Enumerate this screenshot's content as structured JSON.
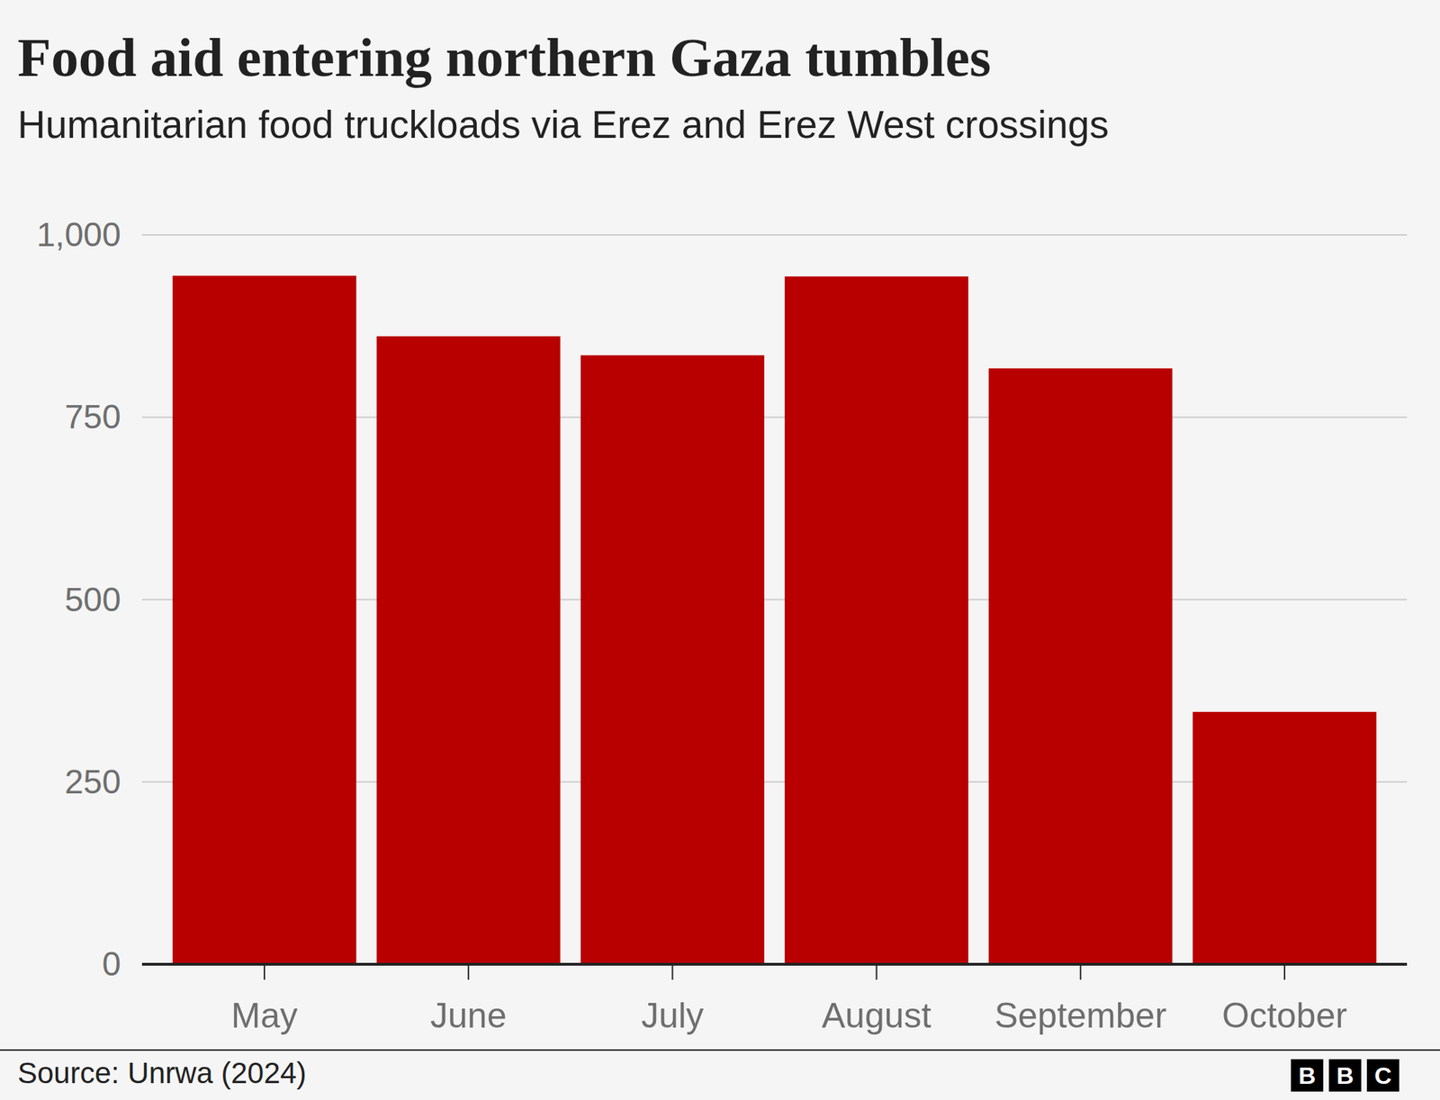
{
  "chart_data": {
    "type": "bar",
    "title": "Food aid entering northern Gaza tumbles",
    "subtitle": "Humanitarian food truckloads via Erez and Erez West crossings",
    "categories": [
      "May",
      "June",
      "July",
      "August",
      "September",
      "October"
    ],
    "values": [
      944,
      861,
      835,
      943,
      817,
      346
    ],
    "color": "#b80000",
    "ylim": [
      0,
      1000
    ],
    "yticks": [
      0,
      250,
      500,
      750,
      {
        "value": 1000,
        "label": "1,000"
      }
    ],
    "grid": true,
    "source": "Source: Unrwa (2024)",
    "logo": [
      "B",
      "B",
      "C"
    ]
  }
}
